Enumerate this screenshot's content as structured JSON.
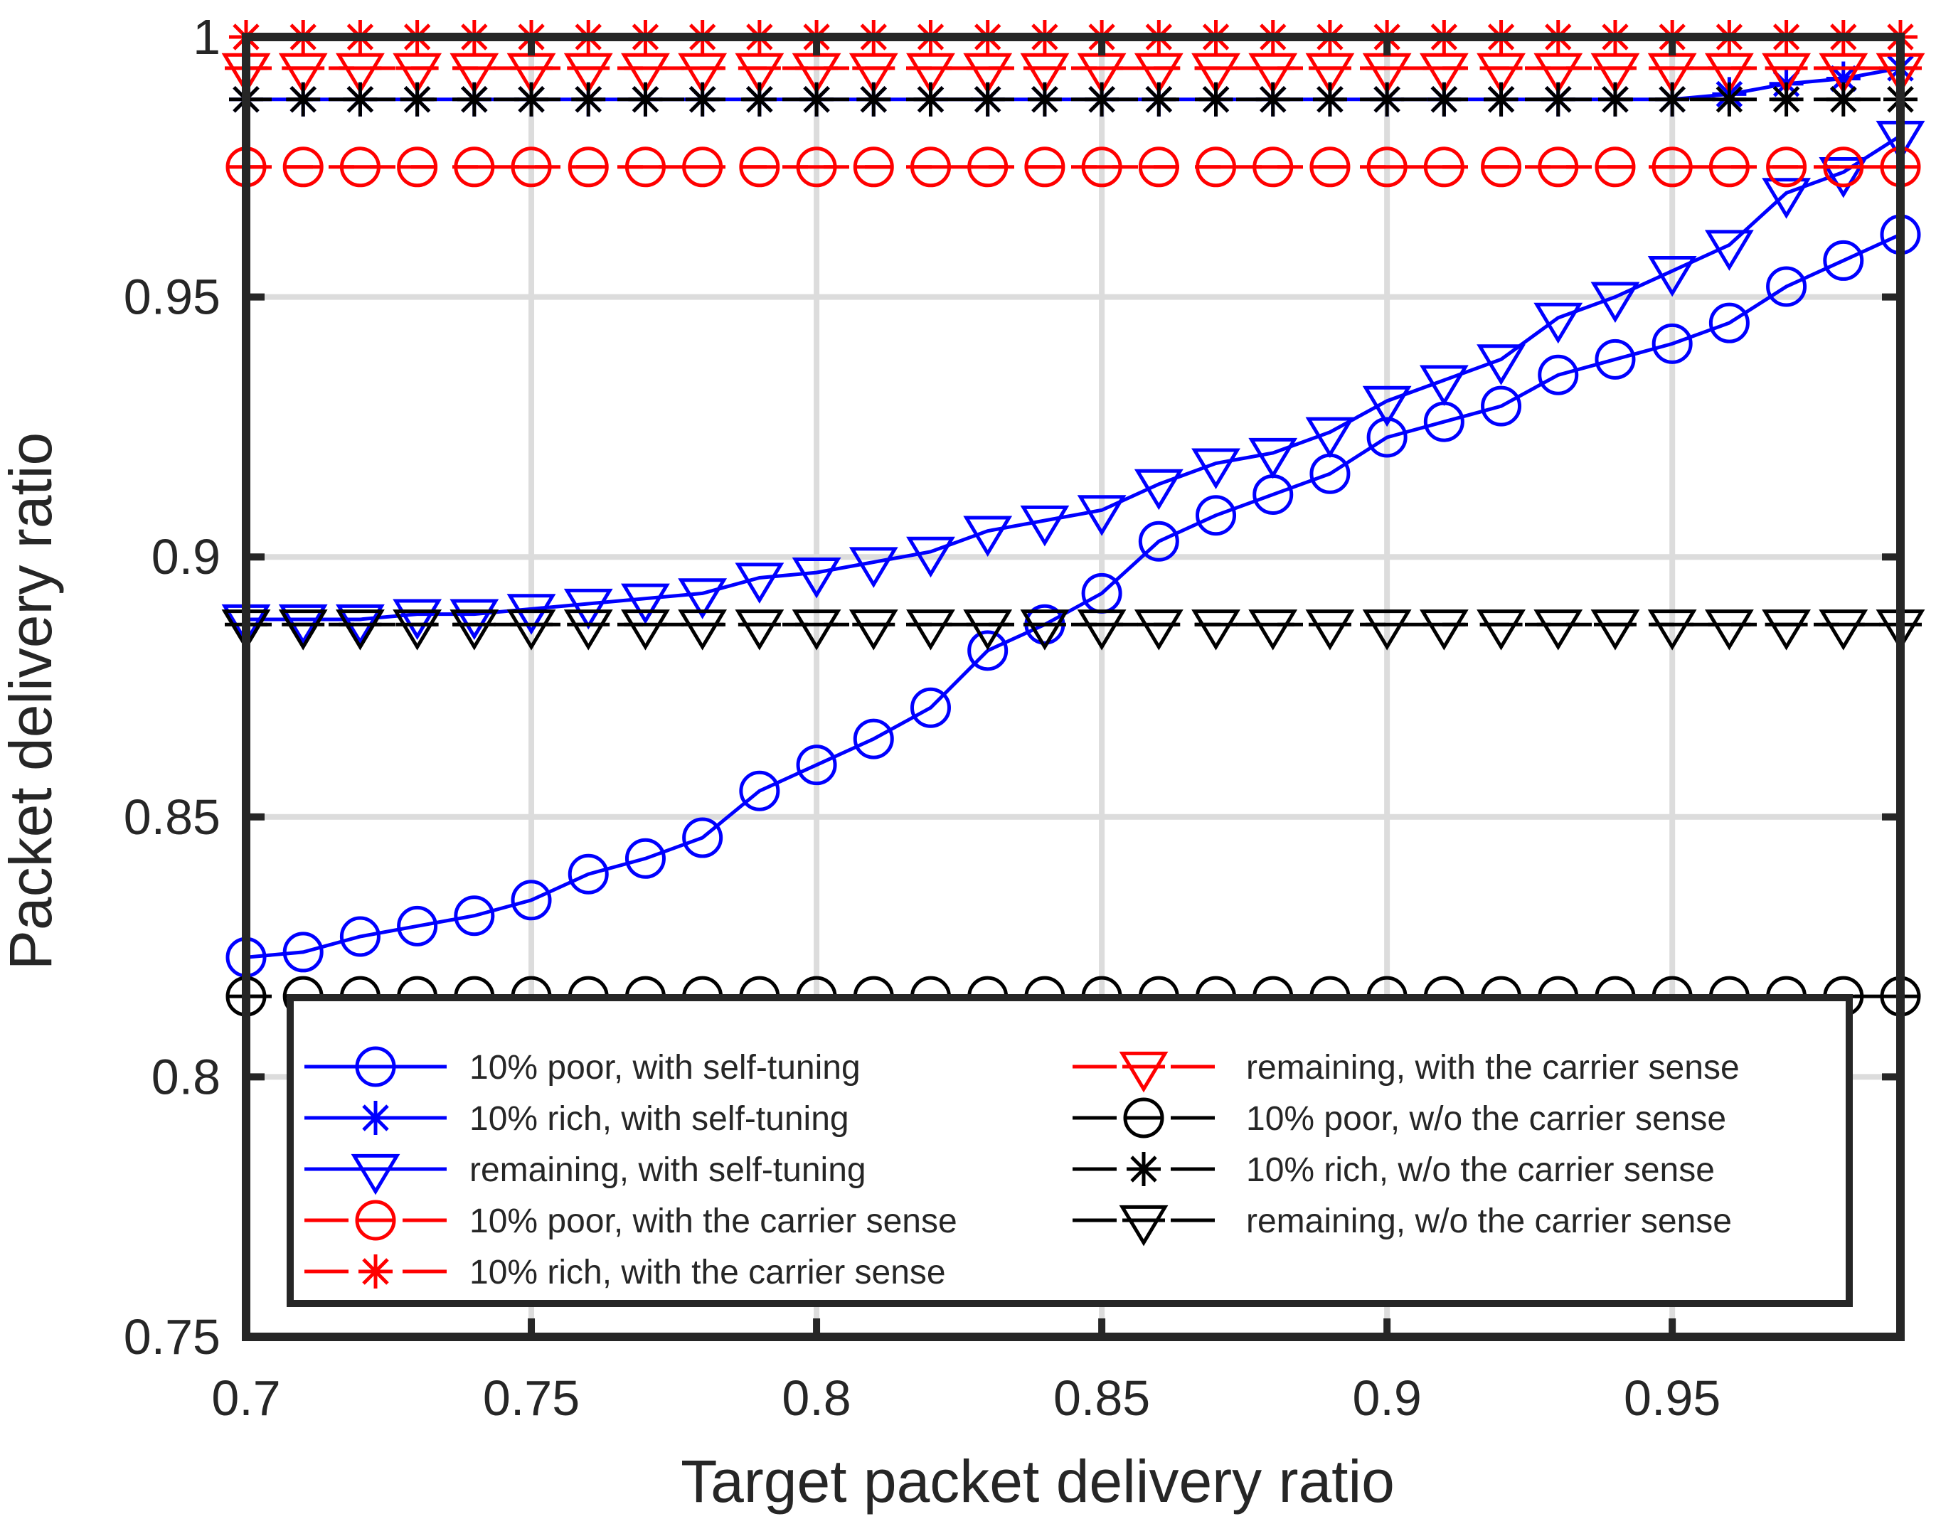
{
  "chart_data": {
    "type": "line",
    "title": "",
    "xlabel": "Target packet delivery ratio",
    "ylabel": "Packet delivery ratio",
    "xlim": [
      0.7,
      0.99
    ],
    "ylim": [
      0.75,
      1.0
    ],
    "grid": true,
    "legend_position": "bottom",
    "x": [
      0.7,
      0.71,
      0.72,
      0.73,
      0.74,
      0.75,
      0.76,
      0.77,
      0.78,
      0.79,
      0.8,
      0.81,
      0.82,
      0.83,
      0.84,
      0.85,
      0.86,
      0.87,
      0.88,
      0.89,
      0.9,
      0.91,
      0.92,
      0.93,
      0.94,
      0.95,
      0.96,
      0.97,
      0.98,
      0.99
    ],
    "xticks": [
      {
        "value": 0.7,
        "label": "0.7"
      },
      {
        "value": 0.75,
        "label": "0.75"
      },
      {
        "value": 0.8,
        "label": "0.8"
      },
      {
        "value": 0.85,
        "label": "0.85"
      },
      {
        "value": 0.9,
        "label": "0.9"
      },
      {
        "value": 0.95,
        "label": "0.95"
      }
    ],
    "yticks": [
      {
        "value": 0.75,
        "label": "0.75"
      },
      {
        "value": 0.8,
        "label": "0.8"
      },
      {
        "value": 0.85,
        "label": "0.85"
      },
      {
        "value": 0.9,
        "label": "0.9"
      },
      {
        "value": 0.95,
        "label": "0.95"
      },
      {
        "value": 1.0,
        "label": "1"
      }
    ],
    "series": [
      {
        "name": "10% poor, with self-tuning",
        "color": "#0000ff",
        "marker": "circle",
        "dashed": false,
        "values": [
          0.823,
          0.824,
          0.827,
          0.829,
          0.831,
          0.834,
          0.839,
          0.842,
          0.846,
          0.855,
          0.86,
          0.865,
          0.871,
          0.882,
          0.887,
          0.893,
          0.903,
          0.908,
          0.912,
          0.916,
          0.923,
          0.926,
          0.929,
          0.935,
          0.938,
          0.941,
          0.945,
          0.952,
          0.957,
          0.962
        ]
      },
      {
        "name": "10% rich, with self-tuning",
        "color": "#0000ff",
        "marker": "asterisk",
        "dashed": false,
        "values": [
          0.988,
          0.988,
          0.988,
          0.988,
          0.988,
          0.988,
          0.988,
          0.988,
          0.988,
          0.988,
          0.988,
          0.988,
          0.988,
          0.988,
          0.988,
          0.988,
          0.988,
          0.988,
          0.988,
          0.988,
          0.988,
          0.988,
          0.988,
          0.988,
          0.988,
          0.988,
          0.989,
          0.991,
          0.992,
          0.994
        ]
      },
      {
        "name": "remaining, with self-tuning",
        "color": "#0000ff",
        "marker": "triangle-down",
        "dashed": false,
        "values": [
          0.888,
          0.888,
          0.888,
          0.889,
          0.889,
          0.89,
          0.891,
          0.892,
          0.893,
          0.896,
          0.897,
          0.899,
          0.901,
          0.905,
          0.907,
          0.909,
          0.914,
          0.918,
          0.92,
          0.924,
          0.93,
          0.934,
          0.938,
          0.946,
          0.95,
          0.955,
          0.96,
          0.97,
          0.974,
          0.981
        ]
      },
      {
        "name": "10% poor, with the carrier sense",
        "color": "#ff0000",
        "marker": "circle-bar",
        "dashed": true,
        "values": [
          0.975,
          0.975,
          0.975,
          0.975,
          0.975,
          0.975,
          0.975,
          0.975,
          0.975,
          0.975,
          0.975,
          0.975,
          0.975,
          0.975,
          0.975,
          0.975,
          0.975,
          0.975,
          0.975,
          0.975,
          0.975,
          0.975,
          0.975,
          0.975,
          0.975,
          0.975,
          0.975,
          0.975,
          0.975,
          0.975
        ]
      },
      {
        "name": "10% rich, with the carrier sense",
        "color": "#ff0000",
        "marker": "asterisk",
        "dashed": true,
        "values": [
          1.0,
          1.0,
          1.0,
          1.0,
          1.0,
          1.0,
          1.0,
          1.0,
          1.0,
          1.0,
          1.0,
          1.0,
          1.0,
          1.0,
          1.0,
          1.0,
          1.0,
          1.0,
          1.0,
          1.0,
          1.0,
          1.0,
          1.0,
          1.0,
          1.0,
          1.0,
          1.0,
          1.0,
          1.0,
          1.0
        ]
      },
      {
        "name": "remaining, with the carrier sense",
        "color": "#ff0000",
        "marker": "triangle-down-bar",
        "dashed": true,
        "values": [
          0.994,
          0.994,
          0.994,
          0.994,
          0.994,
          0.994,
          0.994,
          0.994,
          0.994,
          0.994,
          0.994,
          0.994,
          0.994,
          0.994,
          0.994,
          0.994,
          0.994,
          0.994,
          0.994,
          0.994,
          0.994,
          0.994,
          0.994,
          0.994,
          0.994,
          0.994,
          0.994,
          0.994,
          0.994,
          0.994
        ]
      },
      {
        "name": "10% poor, w/o the carrier sense",
        "color": "#000000",
        "marker": "circle-bar",
        "dashed": true,
        "values": [
          0.8155,
          0.8155,
          0.8155,
          0.8155,
          0.8155,
          0.8155,
          0.8155,
          0.8155,
          0.8155,
          0.8155,
          0.8155,
          0.8155,
          0.8155,
          0.8155,
          0.8155,
          0.8155,
          0.8155,
          0.8155,
          0.8155,
          0.8155,
          0.8155,
          0.8155,
          0.8155,
          0.8155,
          0.8155,
          0.8155,
          0.8155,
          0.8155,
          0.8155,
          0.8155
        ]
      },
      {
        "name": "10% rich, w/o the carrier sense",
        "color": "#000000",
        "marker": "asterisk",
        "dashed": true,
        "values": [
          0.988,
          0.988,
          0.988,
          0.988,
          0.988,
          0.988,
          0.988,
          0.988,
          0.988,
          0.988,
          0.988,
          0.988,
          0.988,
          0.988,
          0.988,
          0.988,
          0.988,
          0.988,
          0.988,
          0.988,
          0.988,
          0.988,
          0.988,
          0.988,
          0.988,
          0.988,
          0.988,
          0.988,
          0.988,
          0.988
        ]
      },
      {
        "name": "remaining, w/o the carrier sense",
        "color": "#000000",
        "marker": "triangle-down-bar",
        "dashed": true,
        "values": [
          0.887,
          0.887,
          0.887,
          0.887,
          0.887,
          0.887,
          0.887,
          0.887,
          0.887,
          0.887,
          0.887,
          0.887,
          0.887,
          0.887,
          0.887,
          0.887,
          0.887,
          0.887,
          0.887,
          0.887,
          0.887,
          0.887,
          0.887,
          0.887,
          0.887,
          0.887,
          0.887,
          0.887,
          0.887,
          0.887
        ]
      }
    ]
  }
}
